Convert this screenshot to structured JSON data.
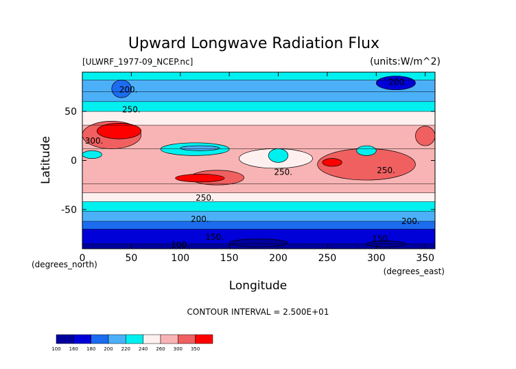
{
  "title": "Upward Longwave Radiation Flux",
  "file_label": "[ULWRF_1977-09_NCEP.nc]",
  "units_label": "(units:W/m^2)",
  "x_unit_label": "(degrees_east)",
  "y_unit_label": "(degrees_north)",
  "contour_interval_label": "CONTOUR INTERVAL = 2.500E+01",
  "colors": {
    "c100": "#00009c",
    "c160": "#0000d8",
    "c180": "#1c6cf0",
    "c200": "#4cb0f8",
    "c220": "#00f0f0",
    "c240": "#fff0f0",
    "c260": "#f8b4b4",
    "c300": "#f06060",
    "c350": "#ff0000"
  },
  "chart_data": {
    "type": "heatmap",
    "title": "Upward Longwave Radiation Flux",
    "xlabel": "Longitude",
    "ylabel": "Latitude",
    "xlim": [
      0,
      360
    ],
    "ylim": [
      -90,
      90
    ],
    "xticks": [
      0,
      50,
      100,
      150,
      200,
      250,
      300,
      350
    ],
    "yticks": [
      -50,
      0,
      50
    ],
    "units": "W/m^2",
    "contour_interval": 25,
    "colorbar": {
      "levels": [
        100,
        160,
        180,
        200,
        220,
        240,
        260,
        300,
        350
      ],
      "tick_labels": [
        "100",
        "160",
        "180",
        "200",
        "220",
        "240",
        "260",
        "300",
        "350"
      ]
    },
    "contour_labels": [
      {
        "text": "200.",
        "x": 47,
        "y": 72
      },
      {
        "text": "250.",
        "x": 50,
        "y": 52
      },
      {
        "text": "300.",
        "x": 12,
        "y": 20
      },
      {
        "text": "250.",
        "x": 205,
        "y": -12
      },
      {
        "text": "250.",
        "x": 125,
        "y": -38
      },
      {
        "text": "200.",
        "x": 120,
        "y": -60
      },
      {
        "text": "150.",
        "x": 135,
        "y": -78
      },
      {
        "text": "100.",
        "x": 100,
        "y": -86
      },
      {
        "text": "200.",
        "x": 322,
        "y": 80
      },
      {
        "text": "250.",
        "x": 310,
        "y": -10
      },
      {
        "text": "200.",
        "x": 335,
        "y": -62
      },
      {
        "text": "150.",
        "x": 305,
        "y": -80
      }
    ],
    "bands": [
      {
        "lat": [
          -90,
          -85
        ],
        "value": 100
      },
      {
        "lat": [
          -85,
          -70
        ],
        "value": 160
      },
      {
        "lat": [
          -70,
          -62
        ],
        "value": 180
      },
      {
        "lat": [
          -62,
          -52
        ],
        "value": 200
      },
      {
        "lat": [
          -52,
          -42
        ],
        "value": 220
      },
      {
        "lat": [
          -42,
          -33
        ],
        "value": 240
      },
      {
        "lat": [
          -33,
          -24
        ],
        "value": 260
      },
      {
        "lat": [
          -24,
          12
        ],
        "value": 260
      },
      {
        "lat": [
          12,
          36
        ],
        "value": 260
      },
      {
        "lat": [
          36,
          50
        ],
        "value": 240
      },
      {
        "lat": [
          50,
          60
        ],
        "value": 220
      },
      {
        "lat": [
          60,
          70
        ],
        "value": 200
      },
      {
        "lat": [
          70,
          82
        ],
        "value": 200
      },
      {
        "lat": [
          82,
          90
        ],
        "value": 220
      }
    ],
    "features": [
      {
        "lon": [
          0,
          60
        ],
        "lat": [
          12,
          40
        ],
        "value": 300
      },
      {
        "lon": [
          15,
          60
        ],
        "lat": [
          22,
          38
        ],
        "value": 350
      },
      {
        "lon": [
          340,
          360
        ],
        "lat": [
          15,
          35
        ],
        "value": 300
      },
      {
        "lon": [
          240,
          340
        ],
        "lat": [
          -20,
          12
        ],
        "value": 300
      },
      {
        "lon": [
          110,
          165
        ],
        "lat": [
          -25,
          -10
        ],
        "value": 300
      },
      {
        "lon": [
          95,
          145
        ],
        "lat": [
          -22,
          -14
        ],
        "value": 350
      },
      {
        "lon": [
          245,
          265
        ],
        "lat": [
          -6,
          2
        ],
        "value": 350
      },
      {
        "lon": [
          160,
          235
        ],
        "lat": [
          -8,
          12
        ],
        "value": 240
      },
      {
        "lon": [
          80,
          150
        ],
        "lat": [
          5,
          18
        ],
        "value": 220
      },
      {
        "lon": [
          100,
          140
        ],
        "lat": [
          10,
          15
        ],
        "value": 200
      },
      {
        "lon": [
          190,
          210
        ],
        "lat": [
          -2,
          12
        ],
        "value": 220
      },
      {
        "lon": [
          280,
          300
        ],
        "lat": [
          5,
          15
        ],
        "value": 220
      },
      {
        "lon": [
          0,
          20
        ],
        "lat": [
          2,
          10
        ],
        "value": 220
      },
      {
        "lon": [
          30,
          50
        ],
        "lat": [
          64,
          82
        ],
        "value": 180
      },
      {
        "lon": [
          300,
          340
        ],
        "lat": [
          72,
          86
        ],
        "value": 160
      },
      {
        "lon": [
          150,
          210
        ],
        "lat": [
          -88,
          -80
        ],
        "value": 100
      },
      {
        "lon": [
          290,
          330
        ],
        "lat": [
          -88,
          -82
        ],
        "value": 100
      }
    ]
  },
  "axis": {
    "x_ticks": [
      "0",
      "50",
      "100",
      "150",
      "200",
      "250",
      "300",
      "350"
    ],
    "y_ticks": [
      "-50",
      "0",
      "50"
    ]
  }
}
